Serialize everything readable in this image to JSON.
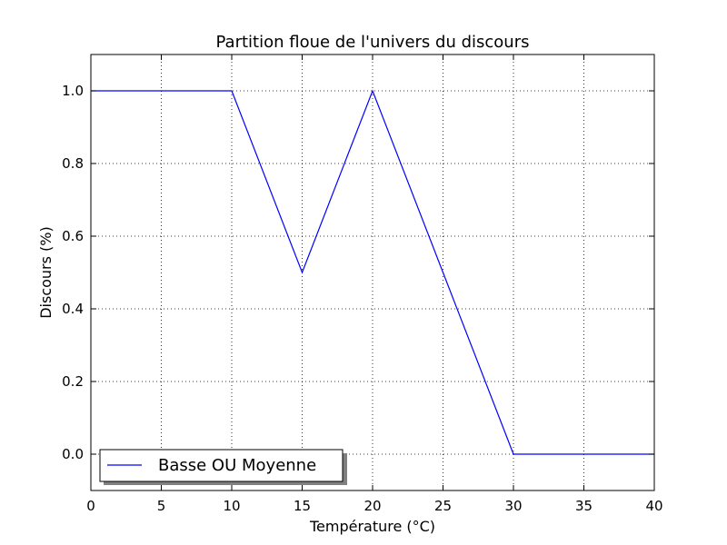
{
  "chart_data": {
    "type": "line",
    "title": "Partition floue de l'univers du discours",
    "xlabel": "Température (°C)",
    "ylabel": "Discours (%)",
    "xlim": [
      0,
      40
    ],
    "ylim": [
      -0.1,
      1.1
    ],
    "x_ticks": [
      "0",
      "5",
      "10",
      "15",
      "20",
      "25",
      "30",
      "35",
      "40"
    ],
    "y_ticks": [
      "0.0",
      "0.2",
      "0.4",
      "0.6",
      "0.8",
      "1.0"
    ],
    "grid": true,
    "legend_position": "lower-left",
    "series": [
      {
        "name": "Basse OU Moyenne",
        "color": "#0000ff",
        "x": [
          0,
          10,
          15,
          20,
          25,
          30,
          40
        ],
        "y": [
          1.0,
          1.0,
          0.5,
          1.0,
          0.5,
          0.0,
          0.0
        ]
      }
    ]
  }
}
